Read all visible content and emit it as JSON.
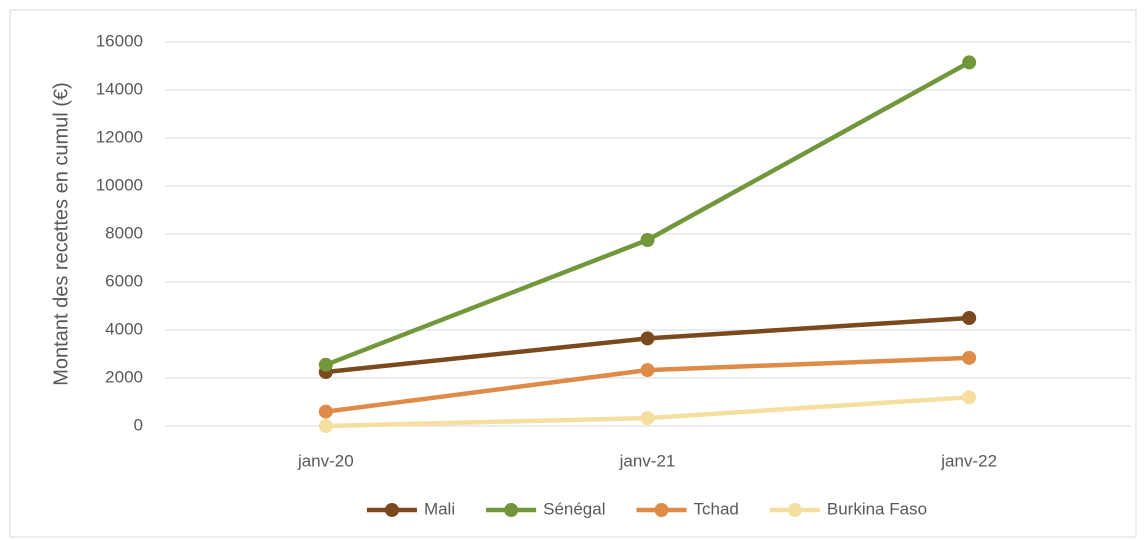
{
  "chart_data": {
    "type": "line",
    "y_label": "Montant des recettes en cumul (€)",
    "categories": [
      "janv-20",
      "janv-21",
      "janv-22"
    ],
    "series": [
      {
        "name": "Mali",
        "color": "#7a4a1e",
        "values": [
          2250,
          3650,
          4500
        ]
      },
      {
        "name": "Sénégal",
        "color": "#72973a",
        "values": [
          2550,
          7750,
          15150
        ]
      },
      {
        "name": "Tchad",
        "color": "#de8b47",
        "values": [
          600,
          2330,
          2840
        ]
      },
      {
        "name": "Burkina Faso",
        "color": "#f5dea0",
        "values": [
          0,
          330,
          1200
        ]
      }
    ],
    "ylim": [
      0,
      16000
    ],
    "yticks": [
      0,
      2000,
      4000,
      6000,
      8000,
      10000,
      12000,
      14000,
      16000
    ],
    "grid": true,
    "legend": "bottom"
  }
}
